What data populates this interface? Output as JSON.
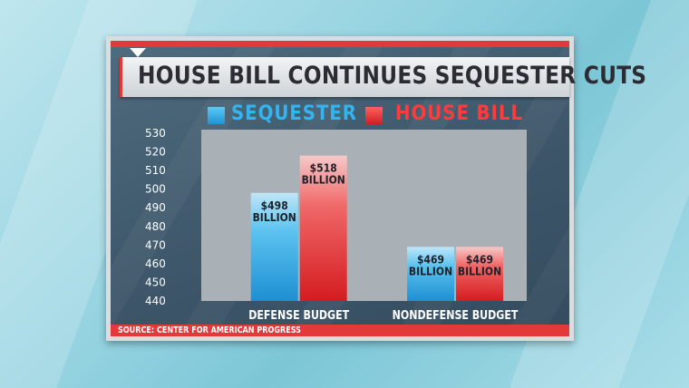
{
  "title": "HOUSE BILL CONTINUES SEQUESTER CUTS",
  "source": "SOURCE: CENTER FOR AMERICAN PROGRESS",
  "colors": {
    "sequester": "#2aa8e4",
    "house_bill": "#e02a2e",
    "accent": "#e2393a",
    "plot_bg": "#a9b1b7"
  },
  "legend": [
    {
      "name": "SEQUESTER",
      "color": "#2aa8e4",
      "text_color": "#34b4ee"
    },
    {
      "name": "HOUSE BILL",
      "color": "#e02a2e",
      "text_color": "#ff3b3b"
    }
  ],
  "chart_data": {
    "type": "bar",
    "title": "HOUSE BILL CONTINUES SEQUESTER CUTS",
    "categories": [
      "DEFENSE BUDGET",
      "NONDEFENSE BUDGET"
    ],
    "series": [
      {
        "name": "SEQUESTER",
        "values": [
          498,
          469
        ],
        "labels": [
          [
            "$498",
            "BILLION"
          ],
          [
            "$469",
            "BILLION"
          ]
        ]
      },
      {
        "name": "HOUSE BILL",
        "values": [
          518,
          469
        ],
        "labels": [
          [
            "$518",
            "BILLION"
          ],
          [
            "$469",
            "BILLION"
          ]
        ]
      }
    ],
    "ylim": [
      440,
      530
    ],
    "yticks": [
      440,
      450,
      460,
      470,
      480,
      490,
      500,
      510,
      520,
      530
    ],
    "xlabel": "",
    "ylabel": "",
    "grid": false,
    "legend_position": "top"
  }
}
